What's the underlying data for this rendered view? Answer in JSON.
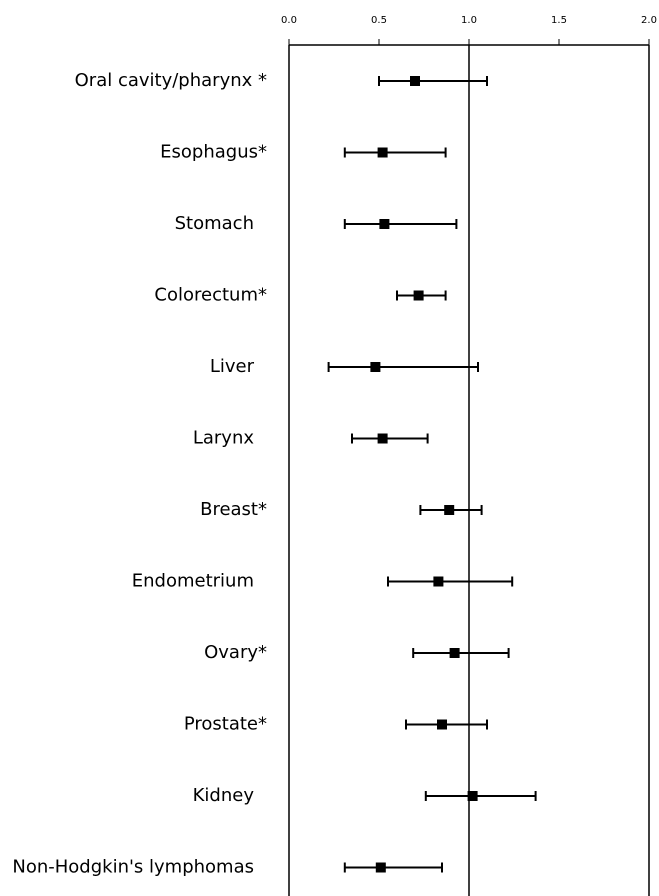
{
  "chart_data": {
    "type": "forest",
    "categories": [
      "Oral cavity/pharynx *",
      "Esophagus*",
      "Stomach",
      "Colorectum*",
      "Liver",
      "Larynx",
      "Breast*",
      "Endometrium",
      "Ovary*",
      "Prostate*",
      "Kidney",
      "Non-Hodgkin's lymphomas"
    ],
    "values": [
      0.7,
      0.52,
      0.53,
      0.72,
      0.48,
      0.52,
      0.89,
      0.83,
      0.92,
      0.85,
      1.02,
      0.51
    ],
    "lower": [
      0.5,
      0.31,
      0.31,
      0.6,
      0.22,
      0.35,
      0.73,
      0.55,
      0.69,
      0.65,
      0.76,
      0.31
    ],
    "upper": [
      1.1,
      0.87,
      0.93,
      0.87,
      1.05,
      0.77,
      1.07,
      1.24,
      1.22,
      1.1,
      1.37,
      0.85
    ],
    "color": "#000000",
    "xlim": [
      0,
      2
    ],
    "xticks": [
      {
        "value": 0,
        "label": "0.0"
      },
      0.5,
      {
        "value": 1,
        "label": "1.0"
      },
      1.5,
      {
        "value": 2,
        "label": "2.0"
      }
    ],
    "reference_line": 1
  }
}
